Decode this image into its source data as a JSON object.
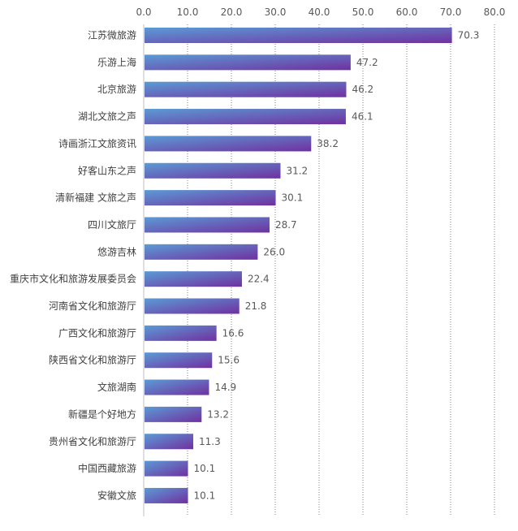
{
  "chart_data": {
    "type": "bar",
    "orientation": "horizontal",
    "title": "",
    "xlabel": "",
    "ylabel": "",
    "xlim": [
      0,
      80
    ],
    "tick_values": [
      0,
      10,
      20,
      30,
      40,
      50,
      60,
      70,
      80
    ],
    "tick_labels": [
      "0.0",
      "10.0",
      "20.0",
      "30.0",
      "40.0",
      "50.0",
      "60.0",
      "70.0",
      "80.0"
    ],
    "tick_axis_position": "top",
    "grid": "vertical-dotted",
    "legend": "none",
    "bar_gradient": [
      "#5B9BD5",
      "#7030A0"
    ],
    "categories": [
      "江苏微旅游",
      "乐游上海",
      "北京旅游",
      "湖北文旅之声",
      "诗画浙江文旅资讯",
      "好客山东之声",
      "清新福建 文旅之声",
      "四川文旅厅",
      "悠游吉林",
      "重庆市文化和旅游发展委员会",
      "河南省文化和旅游厅",
      "广西文化和旅游厅",
      "陕西省文化和旅游厅",
      "文旅湖南",
      "新疆是个好地方",
      "贵州省文化和旅游厅",
      "中国西藏旅游",
      "安徽文旅"
    ],
    "values": [
      70.3,
      47.2,
      46.2,
      46.1,
      38.2,
      31.2,
      30.1,
      28.7,
      26.0,
      22.4,
      21.8,
      16.6,
      15.6,
      14.9,
      13.2,
      11.3,
      10.1,
      10.1
    ],
    "value_labels": [
      "70.3",
      "47.2",
      "46.2",
      "46.1",
      "38.2",
      "31.2",
      "30.1",
      "28.7",
      "26.0",
      "22.4",
      "21.8",
      "16.6",
      "15.6",
      "14.9",
      "13.2",
      "11.3",
      "10.1",
      "10.1"
    ]
  }
}
